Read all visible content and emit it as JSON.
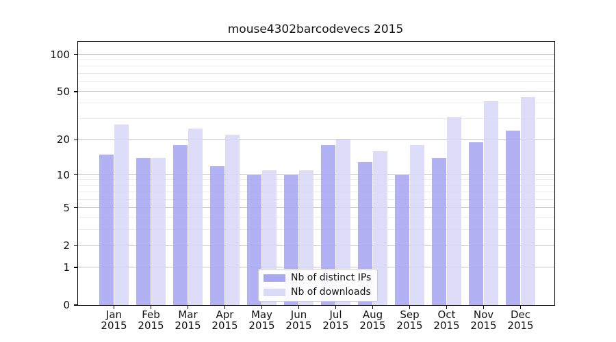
{
  "chart_data": {
    "type": "bar",
    "title": "mouse4302barcodevecs 2015",
    "categories": [
      "Jan",
      "Feb",
      "Mar",
      "Apr",
      "May",
      "Jun",
      "Jul",
      "Aug",
      "Sep",
      "Oct",
      "Nov",
      "Dec"
    ],
    "category_year": "2015",
    "series": [
      {
        "name": "Nb of distinct IPs",
        "color": "#a8a8f2",
        "values": [
          15,
          14,
          18,
          12,
          10,
          10,
          18,
          13,
          10,
          14,
          19,
          24
        ]
      },
      {
        "name": "Nb of downloads",
        "color": "#d9d9f8",
        "values": [
          27,
          14,
          25,
          22,
          11,
          11,
          20,
          16,
          18,
          31,
          42,
          45
        ]
      }
    ],
    "xlabel": "",
    "ylabel": "",
    "y_scale": "symlog",
    "ylim": [
      0,
      127
    ],
    "y_ticks_major": [
      0,
      1,
      2,
      5,
      10,
      20,
      50,
      100
    ],
    "y_ticks_minor": [
      3,
      4,
      6,
      7,
      8,
      9,
      30,
      40,
      60,
      70,
      80,
      90
    ],
    "grid": true,
    "legend_position": "lower center"
  },
  "colors": {
    "grid_major": "#c4c4c4",
    "grid_minor": "#ececec",
    "axis": "#000000",
    "text": "#111111",
    "background": "#ffffff"
  }
}
